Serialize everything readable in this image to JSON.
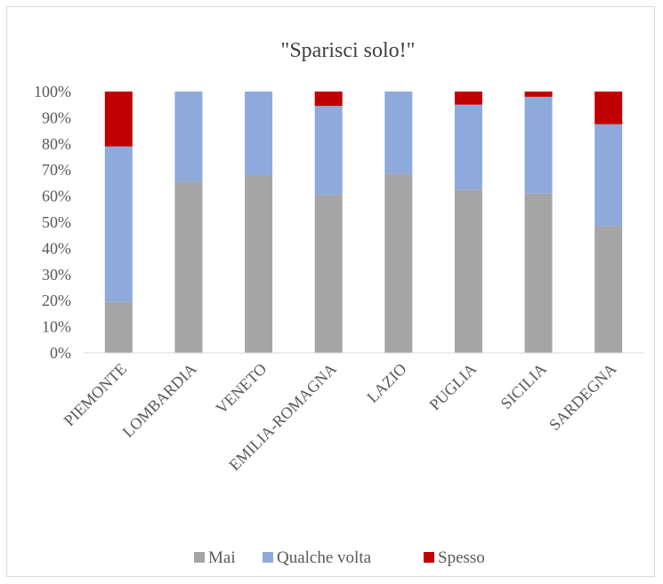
{
  "chart_data": {
    "type": "bar",
    "stacked": true,
    "percent": true,
    "title": "\"Sparisci solo!\"",
    "categories": [
      "PIEMONTE",
      "LOMBARDIA",
      "VENETO",
      "EMILIA-ROMAGNA",
      "LAZIO",
      "PUGLIA",
      "SICILIA",
      "SARDEGNA"
    ],
    "series": [
      {
        "name": "Mai",
        "color": "#a5a5a5",
        "values": [
          19.5,
          65.5,
          68,
          60.5,
          68.5,
          62.5,
          61,
          48.5
        ]
      },
      {
        "name": "Qualche volta",
        "color": "#8eaadb",
        "values": [
          59.5,
          34.5,
          32,
          34,
          31.5,
          32.5,
          37,
          39
        ]
      },
      {
        "name": "Spesso",
        "color": "#c00000",
        "values": [
          21,
          0,
          0,
          5.5,
          0,
          5,
          2,
          12.5
        ]
      }
    ],
    "ylim": [
      0,
      100
    ],
    "yticks": [
      "0%",
      "10%",
      "20%",
      "30%",
      "40%",
      "50%",
      "60%",
      "70%",
      "80%",
      "90%",
      "100%"
    ],
    "grid": false,
    "legend_position": "bottom"
  }
}
